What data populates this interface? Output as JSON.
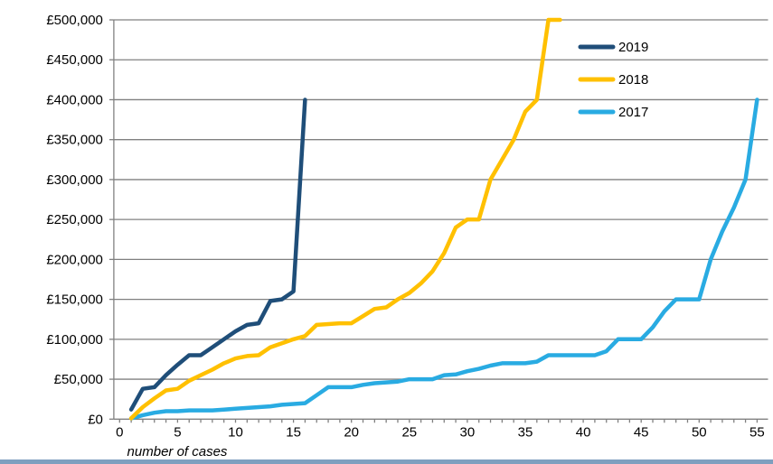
{
  "page": {
    "background": "#ffffff",
    "bottom_bar_color": "#7f9fbf"
  },
  "chart_data": {
    "type": "line",
    "title": "",
    "xlabel": "number of cases",
    "ylabel": "",
    "grid": true,
    "axis_color": "#808080",
    "gridline_color": "#808080",
    "x_axis": {
      "min": 0,
      "max": 55,
      "labeled_tick_interval": 5,
      "minor_tick_interval": 1,
      "tick_labels": [
        "0",
        "5",
        "10",
        "15",
        "20",
        "25",
        "30",
        "35",
        "40",
        "45",
        "50",
        "55"
      ]
    },
    "y_axis": {
      "min": 0,
      "max": 500000,
      "tick_interval": 50000,
      "tick_labels": [
        "£0",
        "£50,000",
        "£100,000",
        "£150,000",
        "£200,000",
        "£250,000",
        "£300,000",
        "£350,000",
        "£400,000",
        "£450,000",
        "£500,000"
      ]
    },
    "legend": {
      "position": "top-right-inside",
      "entries": [
        "2019",
        "2018",
        "2017"
      ]
    },
    "series": [
      {
        "name": "2019",
        "color": "#1f4e79",
        "x_start": 1,
        "values": [
          12000,
          38000,
          40000,
          55000,
          68000,
          80000,
          80000,
          90000,
          100000,
          110000,
          118000,
          120000,
          148000,
          150000,
          160000,
          400000
        ]
      },
      {
        "name": "2018",
        "color": "#ffc000",
        "x_start": 1,
        "values": [
          1000,
          15000,
          26000,
          36000,
          38000,
          48000,
          55000,
          62000,
          70000,
          76000,
          79000,
          80000,
          90000,
          95000,
          100000,
          104000,
          118000,
          119000,
          120000,
          120000,
          129000,
          138000,
          140000,
          150000,
          158000,
          170000,
          185000,
          208000,
          240000,
          250000,
          250000,
          300000,
          325000,
          350000,
          385000,
          400000,
          500000,
          500000
        ]
      },
      {
        "name": "2017",
        "color": "#29abe2",
        "x_start": 1,
        "values": [
          1000,
          5000,
          8000,
          10000,
          10000,
          11000,
          11000,
          11000,
          12000,
          13000,
          14000,
          15000,
          16000,
          18000,
          19000,
          20000,
          30000,
          40000,
          40000,
          40000,
          43000,
          45000,
          46000,
          47000,
          50000,
          50000,
          50000,
          55000,
          56000,
          60000,
          63000,
          67000,
          70000,
          70000,
          70000,
          72000,
          80000,
          80000,
          80000,
          80000,
          80000,
          85000,
          100000,
          100000,
          100000,
          115000,
          135000,
          150000,
          150000,
          150000,
          200000,
          235000,
          265000,
          300000,
          400000
        ]
      }
    ]
  }
}
